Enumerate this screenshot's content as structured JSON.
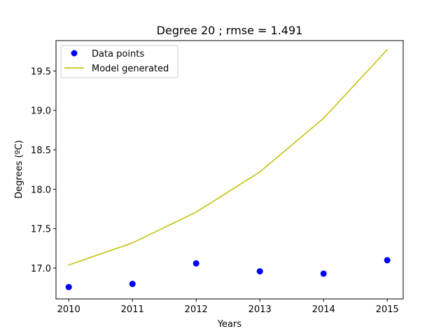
{
  "chart_data": {
    "type": "line",
    "title": "Degree 20 ; rmse = 1.491",
    "xlabel": "Years",
    "ylabel": "Degrees (ºC)",
    "xlim": [
      2009.8,
      2015.25
    ],
    "ylim": [
      16.61,
      19.885
    ],
    "x_ticks": [
      2010,
      2011,
      2012,
      2013,
      2014,
      2015
    ],
    "y_ticks": [
      17.0,
      17.5,
      18.0,
      18.5,
      19.0,
      19.5
    ],
    "y_tick_labels": [
      "17.0",
      "17.5",
      "18.0",
      "18.5",
      "19.0",
      "19.5"
    ],
    "grid": false,
    "legend_position": "top-left",
    "series": [
      {
        "name": "Data points",
        "kind": "scatter",
        "color": "#0000ff",
        "x": [
          2010,
          2011,
          2012,
          2013,
          2014,
          2015
        ],
        "values": [
          16.76,
          16.8,
          17.06,
          16.96,
          16.93,
          17.1
        ]
      },
      {
        "name": "Model generated",
        "kind": "line",
        "color": "#bfbf00",
        "x": [
          2010,
          2011,
          2012,
          2013,
          2014,
          2015
        ],
        "values": [
          17.04,
          17.32,
          17.71,
          18.22,
          18.9,
          19.77
        ]
      }
    ]
  }
}
